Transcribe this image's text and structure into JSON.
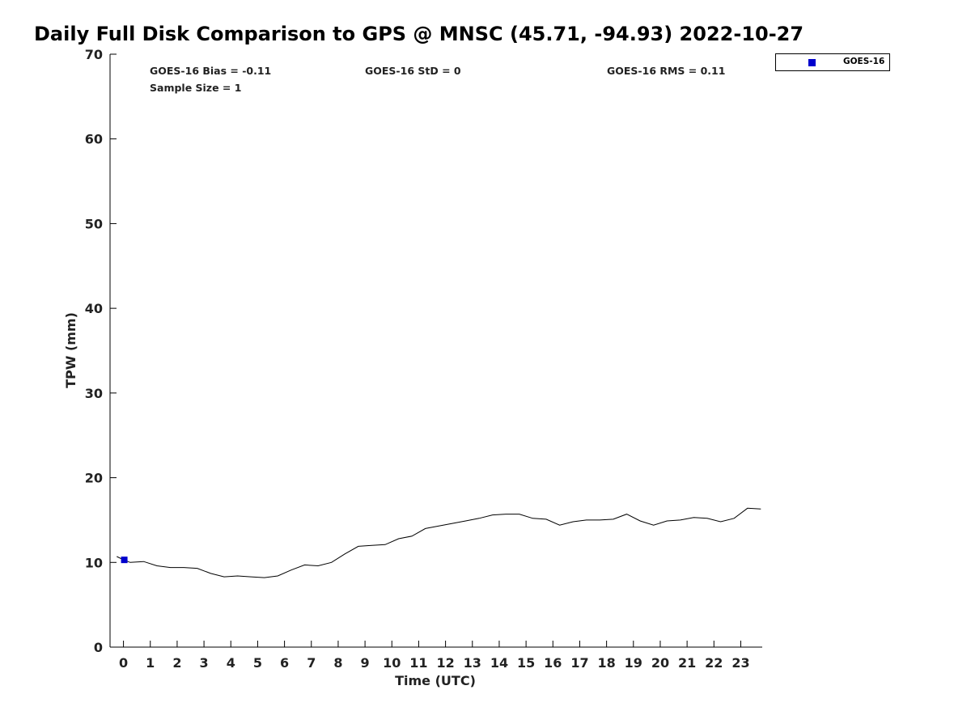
{
  "title": "Daily Full Disk Comparison to GPS @ MNSC (45.71, -94.93) 2022-10-27",
  "stats": {
    "bias": "GOES-16 Bias = -0.11",
    "std": "GOES-16 StD = 0",
    "rms": "GOES-16 RMS = 0.11",
    "sample": "Sample Size = 1"
  },
  "legend": {
    "label": "GOES-16",
    "color": "#0000cd"
  },
  "chart_data": {
    "type": "line",
    "xlabel": "Time (UTC)",
    "ylabel": "TPW (mm)",
    "xlim": [
      -0.5,
      23.8
    ],
    "ylim": [
      0,
      70
    ],
    "xticks": [
      "0",
      "1",
      "2",
      "3",
      "4",
      "5",
      "6",
      "7",
      "8",
      "9",
      "10",
      "11",
      "12",
      "13",
      "14",
      "15",
      "16",
      "17",
      "18",
      "19",
      "20",
      "21",
      "22",
      "23"
    ],
    "yticks": [
      "0",
      "10",
      "20",
      "30",
      "40",
      "50",
      "60",
      "70"
    ],
    "grid": false,
    "legend_position": "top-right",
    "series": [
      {
        "kind": "line",
        "color": "#000000",
        "x": [
          -0.25,
          0.0,
          0.25,
          0.75,
          1.25,
          1.75,
          2.25,
          2.75,
          3.25,
          3.75,
          4.25,
          4.75,
          5.25,
          5.75,
          6.25,
          6.75,
          7.25,
          7.75,
          8.25,
          8.75,
          9.25,
          9.75,
          10.25,
          10.75,
          11.25,
          11.75,
          12.25,
          12.75,
          13.25,
          13.75,
          14.25,
          14.75,
          15.25,
          15.75,
          16.25,
          16.75,
          17.25,
          17.75,
          18.25,
          18.75,
          19.25,
          19.75,
          20.25,
          20.75,
          21.25,
          21.75,
          22.25,
          22.75,
          23.25,
          23.75
        ],
        "y": [
          10.7,
          10.3,
          10.0,
          10.1,
          9.6,
          9.4,
          9.4,
          9.3,
          8.7,
          8.3,
          8.4,
          8.3,
          8.2,
          8.4,
          9.1,
          9.7,
          9.6,
          10.0,
          11.0,
          11.9,
          12.0,
          12.1,
          12.8,
          13.1,
          14.0,
          14.3,
          14.6,
          14.9,
          15.2,
          15.6,
          15.7,
          15.7,
          15.2,
          15.1,
          14.4,
          14.8,
          15.0,
          15.0,
          15.1,
          15.7,
          14.9,
          14.4,
          14.9,
          15.0,
          15.3,
          15.2,
          14.8,
          15.2,
          16.4,
          16.3
        ]
      },
      {
        "name": "GOES-16",
        "kind": "marker",
        "color": "#0000cd",
        "x": [
          0.03
        ],
        "y": [
          10.3
        ]
      }
    ]
  }
}
